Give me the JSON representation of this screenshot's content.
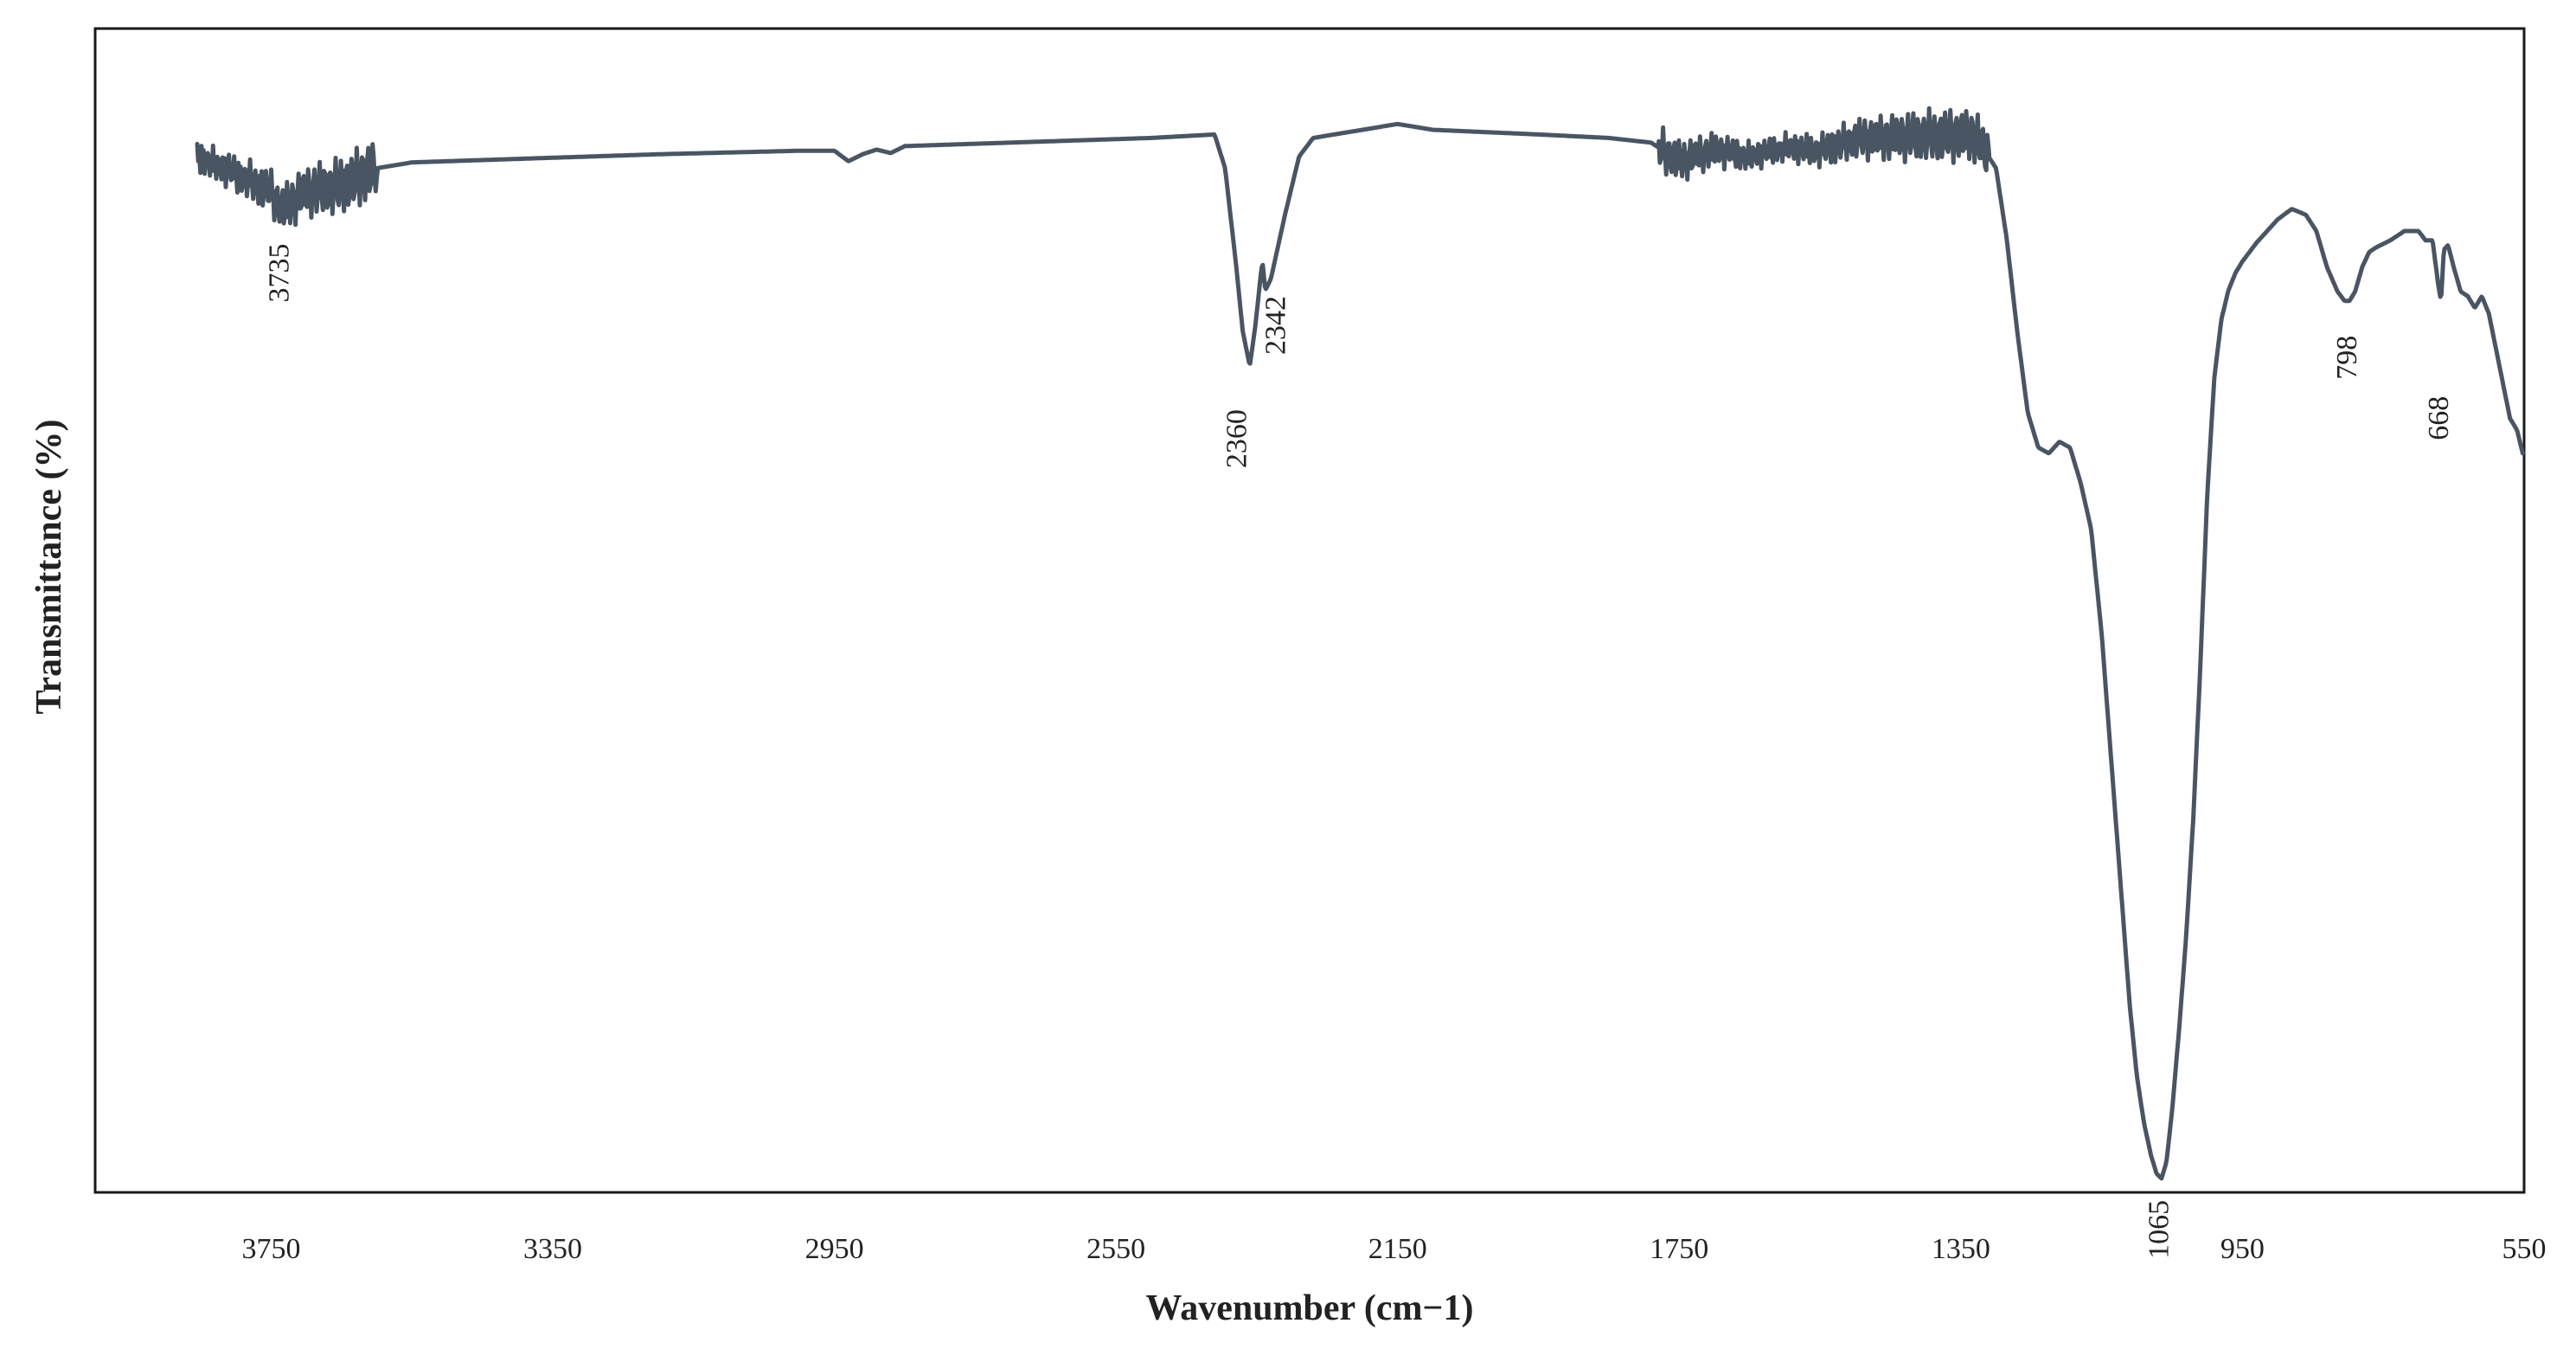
{
  "chart_data": {
    "type": "line",
    "title": "",
    "xlabel": "Wavenumber (cm−1)",
    "ylabel": "Transmittance (%)",
    "x_reversed": true,
    "xlim": [
      4000,
      550
    ],
    "ylim": [
      0,
      100
    ],
    "y_ticks_shown": false,
    "grid": false,
    "legend": "none",
    "line_color": "#4a5563",
    "x_ticks": [
      3750,
      3350,
      2950,
      2550,
      2150,
      1750,
      1350,
      950,
      550
    ],
    "x_tick_labels": [
      "3750",
      "3350",
      "2950",
      "2550",
      "2150",
      "1750",
      "1350",
      "950",
      "550"
    ],
    "peak_labels": [
      {
        "x": 3735,
        "label": "3735"
      },
      {
        "x": 2360,
        "label": "2360"
      },
      {
        "x": 2342,
        "label": "2342"
      },
      {
        "x": 1065,
        "label": "1065"
      },
      {
        "x": 798,
        "label": "798"
      },
      {
        "x": 668,
        "label": "668"
      }
    ],
    "series": [
      {
        "noise_regions": [
          [
            3855,
            3600,
            2.5
          ],
          [
            1780,
            1310,
            2.2
          ]
        ],
        "x": [
          3855,
          3800,
          3750,
          3735,
          3700,
          3650,
          3600,
          3550,
          3400,
          3200,
          3000,
          2950,
          2930,
          2910,
          2890,
          2870,
          2850,
          2700,
          2500,
          2410,
          2395,
          2380,
          2370,
          2360,
          2352,
          2345,
          2342,
          2338,
          2330,
          2310,
          2290,
          2270,
          2200,
          2150,
          2100,
          1950,
          1850,
          1790,
          1750,
          1700,
          1650,
          1600,
          1550,
          1500,
          1400,
          1330,
          1300,
          1285,
          1270,
          1255,
          1240,
          1225,
          1210,
          1195,
          1180,
          1165,
          1150,
          1135,
          1120,
          1110,
          1100,
          1090,
          1080,
          1072,
          1065,
          1058,
          1050,
          1040,
          1030,
          1020,
          1010,
          1000,
          990,
          980,
          970,
          960,
          950,
          930,
          900,
          880,
          860,
          845,
          830,
          815,
          805,
          798,
          790,
          780,
          770,
          760,
          740,
          720,
          700,
          690,
          680,
          672,
          668,
          664,
          658,
          650,
          640,
          630,
          620,
          610,
          600,
          590,
          580,
          570,
          560,
          552
        ],
        "y": [
          89,
          87.5,
          86,
          84.5,
          86,
          86.5,
          88,
          88.5,
          88.8,
          89.2,
          89.5,
          89.5,
          88.6,
          89.2,
          89.6,
          89.3,
          89.9,
          90.2,
          90.6,
          90.9,
          88,
          80,
          74,
          71,
          74.5,
          78.5,
          80,
          77.5,
          78.5,
          84,
          89,
          90.6,
          91.3,
          91.8,
          91.3,
          90.9,
          90.6,
          90.2,
          88.6,
          89.6,
          89,
          89.8,
          89.5,
          90.5,
          90.8,
          90.8,
          88,
          82,
          74,
          67,
          64,
          63.5,
          64.5,
          64,
          61,
          57,
          48,
          36,
          24,
          16,
          10,
          6,
          3.2,
          1.6,
          1.2,
          2.6,
          7,
          14,
          22,
          32,
          45,
          60,
          70,
          75,
          77.5,
          79,
          80,
          81.6,
          83.6,
          84.5,
          84,
          82.6,
          79.5,
          77.4,
          76.6,
          76.6,
          77.4,
          79.5,
          80.8,
          81.2,
          81.8,
          82.6,
          82.6,
          81.8,
          81.8,
          78,
          76.6,
          81,
          81.4,
          79.5,
          77.4,
          77,
          76,
          77,
          75.5,
          72.5,
          69.5,
          66.5,
          65.5,
          63.5
        ]
      }
    ]
  }
}
